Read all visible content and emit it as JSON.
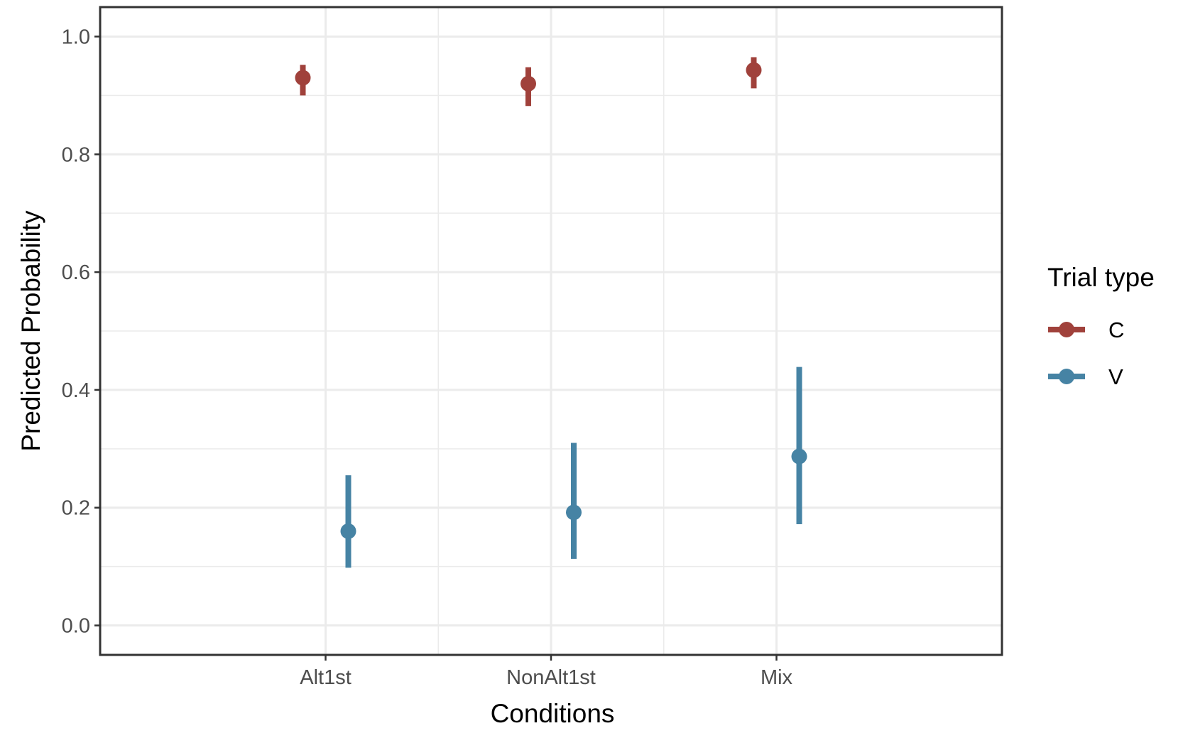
{
  "chart_data": {
    "type": "pointrange",
    "xlabel": "Conditions",
    "ylabel": "Predicted Probability",
    "categories": [
      "Alt1st",
      "NonAlt1st",
      "Mix"
    ],
    "ylim": [
      -0.05,
      1.05
    ],
    "yticks": [
      "0.0",
      "0.2",
      "0.4",
      "0.6",
      "0.8",
      "1.0"
    ],
    "grid": true,
    "legend": {
      "title": "Trial type",
      "position": "right"
    },
    "series": [
      {
        "name": "C",
        "color": "#a0413b",
        "values": [
          0.93,
          0.92,
          0.943
        ],
        "lower": [
          0.9,
          0.882,
          0.912
        ],
        "upper": [
          0.952,
          0.948,
          0.965
        ]
      },
      {
        "name": "V",
        "color": "#4683a4",
        "values": [
          0.16,
          0.192,
          0.287
        ],
        "lower": [
          0.098,
          0.113,
          0.172
        ],
        "upper": [
          0.255,
          0.31,
          0.439
        ]
      }
    ]
  }
}
